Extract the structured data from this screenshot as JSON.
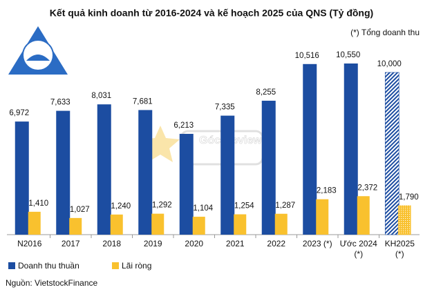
{
  "chart_data": {
    "type": "bar",
    "title": "Kết quả kinh doanh từ 2016-2024 và kế hoạch 2025 của QNS (Tỷ đồng)",
    "note": "(*) Tổng doanh thu",
    "source": "Nguồn: VietstockFinance",
    "watermark": "Góc Review",
    "categories": [
      "N2016",
      "2017",
      "2018",
      "2019",
      "2020",
      "2021",
      "2022",
      "2023 (*)",
      "Ước 2024\n(*)",
      "KH2025\n(*)"
    ],
    "series": [
      {
        "name": "Doanh thu thuần",
        "color": "#1c4da1",
        "values": [
          6972,
          7633,
          8031,
          7681,
          6213,
          7335,
          8255,
          10516,
          10550,
          10000
        ],
        "value_labels": [
          "6,972",
          "7,633",
          "8,031",
          "7,681",
          "6,213",
          "7,335",
          "8,255",
          "10,516",
          "10,550",
          "10,000"
        ]
      },
      {
        "name": "Lãi ròng",
        "color": "#f9c12e",
        "values": [
          1410,
          1027,
          1240,
          1292,
          1104,
          1254,
          1287,
          2183,
          2372,
          1790
        ],
        "value_labels": [
          "1,410",
          "1,027",
          "1,240",
          "1,292",
          "1,104",
          "1,254",
          "1,287",
          "2,183",
          "2,372",
          "1,790"
        ]
      }
    ],
    "hatched_last": true,
    "legend": "bottom-left"
  }
}
